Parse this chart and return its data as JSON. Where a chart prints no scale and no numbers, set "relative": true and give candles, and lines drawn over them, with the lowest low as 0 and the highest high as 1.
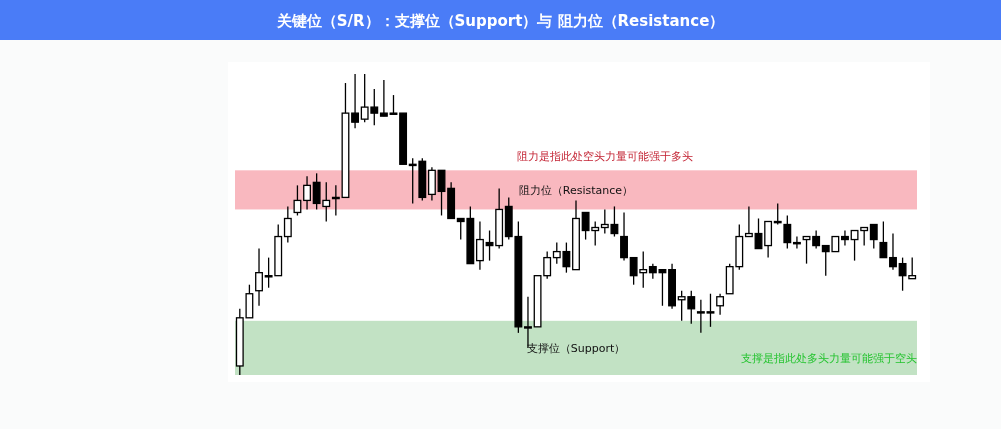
{
  "chart_data": {
    "type": "candlestick",
    "title": "关键位（S/R）：支撑位（Support）与 阻力位（Resistance）",
    "relative": true,
    "categories": [
      null,
      null,
      null,
      null,
      null,
      null,
      null,
      null,
      null,
      null,
      null,
      null,
      null,
      null,
      null,
      null,
      null,
      null,
      null,
      null,
      null,
      null,
      null,
      null,
      null,
      null,
      null,
      null,
      null,
      null,
      null,
      null,
      null,
      null,
      null,
      null,
      null,
      null,
      null,
      null,
      null,
      null,
      null,
      null,
      null,
      null,
      null,
      null,
      null,
      null,
      null,
      null,
      null,
      null,
      null,
      null,
      null,
      null,
      null,
      null,
      null,
      null,
      null,
      null,
      null,
      null,
      null,
      null,
      null,
      null,
      null
    ],
    "ohlc": [
      [
        0.03,
        0.22,
        0,
        0.19
      ],
      [
        0.19,
        0.3,
        0.19,
        0.27
      ],
      [
        0.28,
        0.42,
        0.23,
        0.34
      ],
      [
        0.33,
        0.39,
        0.29,
        0.33
      ],
      [
        0.33,
        0.5,
        0.33,
        0.46
      ],
      [
        0.46,
        0.56,
        0.44,
        0.52
      ],
      [
        0.54,
        0.63,
        0.53,
        0.58
      ],
      [
        0.58,
        0.66,
        0.55,
        0.63
      ],
      [
        0.64,
        0.67,
        0.55,
        0.57
      ],
      [
        0.56,
        0.64,
        0.51,
        0.58
      ],
      [
        0.59,
        0.63,
        0.53,
        0.59
      ],
      [
        0.59,
        0.97,
        0.59,
        0.87
      ],
      [
        0.87,
        1,
        0.82,
        0.84
      ],
      [
        0.85,
        1,
        0.84,
        0.89
      ],
      [
        0.89,
        0.95,
        0.83,
        0.87
      ],
      [
        0.87,
        0.98,
        0.86,
        0.86
      ],
      [
        0.87,
        0.93,
        0.87,
        0.87
      ],
      [
        0.87,
        0.87,
        0.7,
        0.7
      ],
      [
        0.7,
        0.72,
        0.57,
        0.7
      ],
      [
        0.71,
        0.72,
        0.58,
        0.59
      ],
      [
        0.6,
        0.69,
        0.58,
        0.68
      ],
      [
        0.68,
        0.68,
        0.53,
        0.61
      ],
      [
        0.62,
        0.64,
        0.52,
        0.52
      ],
      [
        0.52,
        0.52,
        0.45,
        0.51
      ],
      [
        0.52,
        0.56,
        0.37,
        0.37
      ],
      [
        0.38,
        0.51,
        0.35,
        0.45
      ],
      [
        0.44,
        0.48,
        0.38,
        0.43
      ],
      [
        0.43,
        0.62,
        0.42,
        0.55
      ],
      [
        0.56,
        0.59,
        0.45,
        0.46
      ],
      [
        0.46,
        0.51,
        0.14,
        0.16
      ],
      [
        0.16,
        0.26,
        0.09,
        0.16
      ],
      [
        0.16,
        0.33,
        0.16,
        0.33
      ],
      [
        0.33,
        0.41,
        0.32,
        0.39
      ],
      [
        0.39,
        0.44,
        0.37,
        0.41
      ],
      [
        0.41,
        0.44,
        0.34,
        0.36
      ],
      [
        0.35,
        0.58,
        0.35,
        0.52
      ],
      [
        0.54,
        0.54,
        0.45,
        0.48
      ],
      [
        0.48,
        0.51,
        0.43,
        0.49
      ],
      [
        0.49,
        0.55,
        0.47,
        0.5
      ],
      [
        0.5,
        0.56,
        0.46,
        0.47
      ],
      [
        0.46,
        0.54,
        0.38,
        0.39
      ],
      [
        0.39,
        0.39,
        0.3,
        0.33
      ],
      [
        0.34,
        0.41,
        0.29,
        0.35
      ],
      [
        0.36,
        0.37,
        0.32,
        0.34
      ],
      [
        0.35,
        0.35,
        0.23,
        0.34
      ],
      [
        0.35,
        0.37,
        0.22,
        0.23
      ],
      [
        0.25,
        0.28,
        0.18,
        0.26
      ],
      [
        0.26,
        0.28,
        0.17,
        0.22
      ],
      [
        0.21,
        0.25,
        0.14,
        0.21
      ],
      [
        0.21,
        0.27,
        0.16,
        0.21
      ],
      [
        0.23,
        0.27,
        0.2,
        0.26
      ],
      [
        0.27,
        0.37,
        0.27,
        0.36
      ],
      [
        0.36,
        0.5,
        0.35,
        0.46
      ],
      [
        0.46,
        0.56,
        0.46,
        0.47
      ],
      [
        0.47,
        0.52,
        0.42,
        0.42
      ],
      [
        0.43,
        0.51,
        0.39,
        0.51
      ],
      [
        0.51,
        0.57,
        0.5,
        0.51
      ],
      [
        0.5,
        0.53,
        0.42,
        0.44
      ],
      [
        0.44,
        0.46,
        0.42,
        0.44
      ],
      [
        0.45,
        0.46,
        0.37,
        0.46
      ],
      [
        0.46,
        0.48,
        0.42,
        0.43
      ],
      [
        0.43,
        0.43,
        0.33,
        0.41
      ],
      [
        0.41,
        0.46,
        0.41,
        0.46
      ],
      [
        0.46,
        0.48,
        0.43,
        0.45
      ],
      [
        0.45,
        0.48,
        0.38,
        0.48
      ],
      [
        0.48,
        0.49,
        0.43,
        0.49
      ],
      [
        0.5,
        0.5,
        0.42,
        0.45
      ],
      [
        0.44,
        0.51,
        0.39,
        0.39
      ],
      [
        0.39,
        0.47,
        0.35,
        0.36
      ],
      [
        0.37,
        0.39,
        0.28,
        0.33
      ],
      [
        0.32,
        0.39,
        0.32,
        0.33
      ]
    ],
    "bands": [
      {
        "axis": "y",
        "from": 0.55,
        "to": 0.68,
        "label": "阻力位（Resistance）",
        "color": "#f9b8bf"
      },
      {
        "axis": "y",
        "from": 0,
        "to": 0.18,
        "label": "支撑位（Support）",
        "color": "#c2e2c4"
      }
    ],
    "annotations": [
      "阻力是指此处空头力量可能强于多头",
      "支撑是指此处多头力量可能强于空头"
    ]
  }
}
